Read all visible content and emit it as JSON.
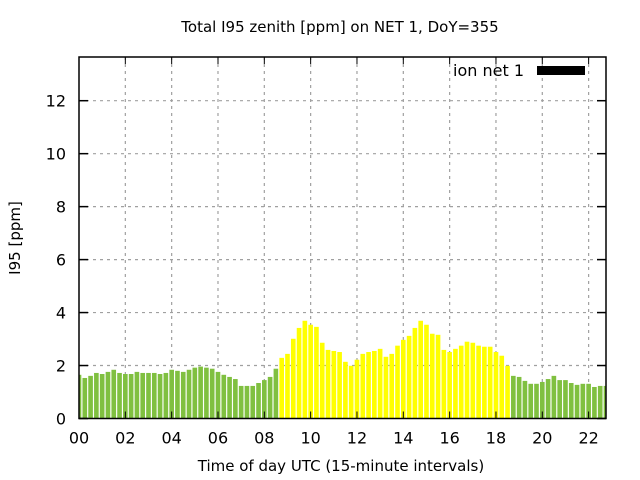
{
  "chart_data": {
    "type": "bar",
    "title": "Total I95 zenith [ppm] on NET 1, DoY=355",
    "xlabel": "Time of day UTC (15-minute intervals)",
    "ylabel": "I95 [ppm]",
    "xlim": [
      0,
      22.75
    ],
    "ylim": [
      0,
      13.65
    ],
    "grid": true,
    "legend": {
      "position": "top-right",
      "entries": [
        {
          "name": "ion net 1",
          "color": "#000000"
        }
      ]
    },
    "x_ticks": [
      0,
      2,
      4,
      6,
      8,
      10,
      12,
      14,
      16,
      18,
      20,
      22
    ],
    "x_tick_labels": [
      "00",
      "02",
      "04",
      "06",
      "08",
      "10",
      "12",
      "14",
      "16",
      "18",
      "20",
      "22"
    ],
    "y_ticks": [
      0,
      2,
      4,
      6,
      8,
      10,
      12
    ],
    "y_tick_labels": [
      "0",
      "2",
      "4",
      "6",
      "8",
      "10",
      "12"
    ],
    "bar_interval_hours": 0.25,
    "colors": {
      "normal": "#80c040",
      "elevated": "#ffff00"
    },
    "elevated_time_range": [
      8.75,
      18.5
    ],
    "series": [
      {
        "name": "ion net 1",
        "values": [
          1.65,
          1.53,
          1.61,
          1.72,
          1.68,
          1.76,
          1.84,
          1.72,
          1.68,
          1.68,
          1.76,
          1.72,
          1.72,
          1.72,
          1.68,
          1.72,
          1.84,
          1.8,
          1.76,
          1.84,
          1.92,
          1.96,
          1.92,
          1.88,
          1.76,
          1.65,
          1.57,
          1.49,
          1.23,
          1.23,
          1.23,
          1.34,
          1.45,
          1.57,
          1.88,
          2.29,
          2.44,
          3.01,
          3.42,
          3.69,
          3.54,
          3.46,
          2.86,
          2.59,
          2.55,
          2.51,
          2.14,
          1.99,
          2.22,
          2.44,
          2.51,
          2.55,
          2.63,
          2.33,
          2.44,
          2.75,
          2.97,
          3.12,
          3.42,
          3.69,
          3.54,
          3.2,
          3.16,
          2.59,
          2.51,
          2.63,
          2.75,
          2.9,
          2.86,
          2.75,
          2.71,
          2.71,
          2.51,
          2.37,
          1.99,
          1.61,
          1.57,
          1.42,
          1.31,
          1.31,
          1.38,
          1.49,
          1.61,
          1.45,
          1.45,
          1.34,
          1.27,
          1.31,
          1.31,
          1.19,
          1.23,
          1.23
        ]
      }
    ]
  }
}
